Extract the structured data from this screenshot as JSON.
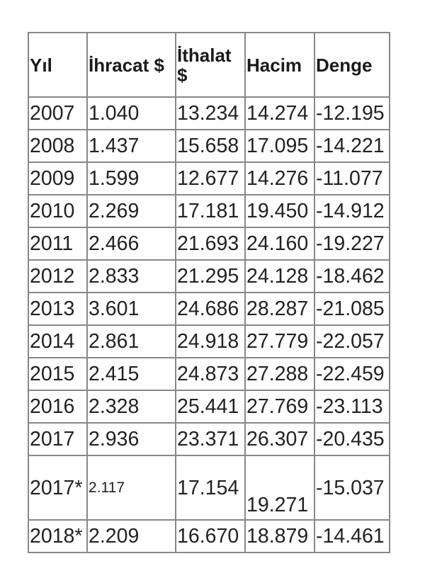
{
  "table": {
    "headers": [
      "Yıl",
      "İhracat $",
      "İthalat $",
      "Hacim",
      "Denge"
    ],
    "rows": [
      [
        "2007",
        "1.040",
        "13.234",
        "14.274",
        "-12.195"
      ],
      [
        "2008",
        "1.437",
        "15.658",
        "17.095",
        "-14.221"
      ],
      [
        "2009",
        "1.599",
        "12.677",
        "14.276",
        "-11.077"
      ],
      [
        "2010",
        "2.269",
        "17.181",
        "19.450",
        "-14.912"
      ],
      [
        "2011",
        "2.466",
        "21.693",
        "24.160",
        "-19.227"
      ],
      [
        "2012",
        "2.833",
        "21.295",
        "24.128",
        "-18.462"
      ],
      [
        "2013",
        "3.601",
        "24.686",
        "28.287",
        "-21.085"
      ],
      [
        "2014",
        "2.861",
        "24.918",
        "27.779",
        "-22.057"
      ],
      [
        "2015",
        "2.415",
        "24.873",
        "27.288",
        "-22.459"
      ],
      [
        "2016",
        "2.328",
        "25.441",
        "27.769",
        "-23.113"
      ],
      [
        "2017",
        "2.936",
        "23.371",
        "26.307",
        "-20.435"
      ],
      [
        "2017*",
        "2.117",
        "17.154",
        "19.271",
        "-15.037"
      ],
      [
        "2018*",
        "2.209",
        "16.670",
        "18.879",
        "-14.461"
      ]
    ]
  }
}
